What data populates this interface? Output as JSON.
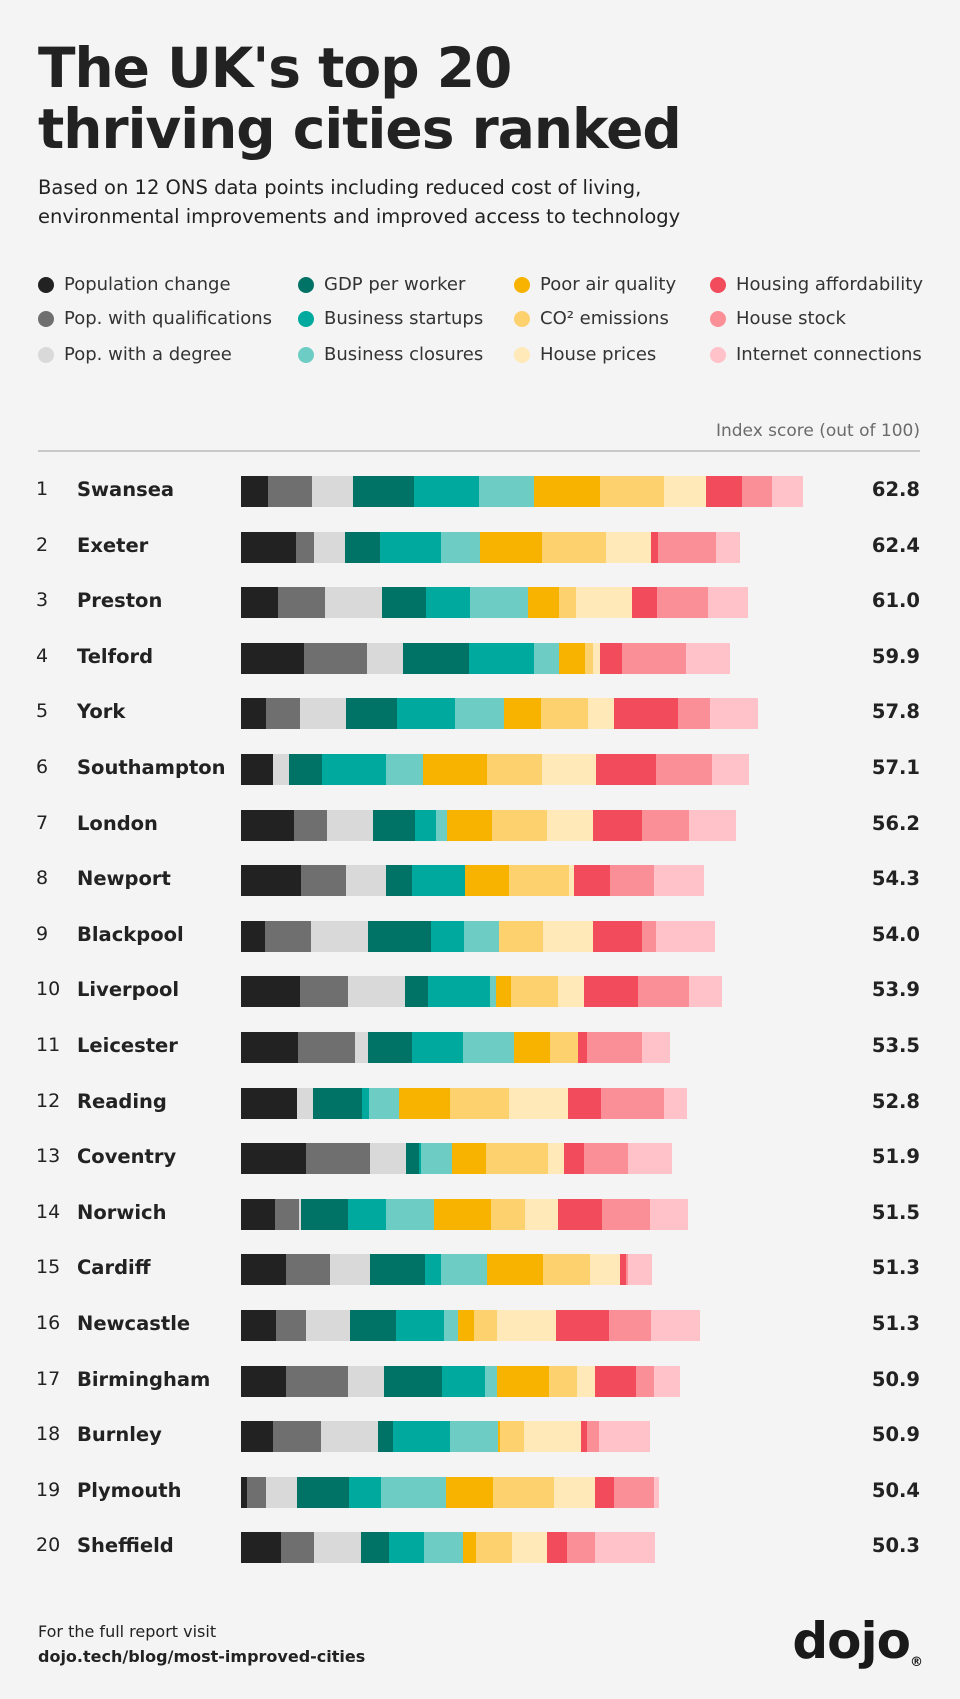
{
  "header": {
    "title_line1": "The UK's top 20",
    "title_line2": "thriving cities ranked",
    "subtitle_line1": "Based on 12 ONS data points including reduced cost of living,",
    "subtitle_line2": "environmental improvements and improved access to technology"
  },
  "index_label": "Index score (out of 100)",
  "footer": {
    "line1": "For the full report visit",
    "url": "dojo.tech/blog/most-improved-cities",
    "logo": "dojo",
    "logo_mark": "®"
  },
  "colors": {
    "background": "#f4f4f4",
    "text": "#1f1f1f",
    "muted": "#6b6b6b",
    "divider": "#c8c8c8"
  },
  "chart_data": {
    "type": "bar",
    "orientation": "horizontal",
    "stacked": true,
    "title": "The UK's top 20 thriving cities ranked",
    "subtitle": "Based on 12 ONS data points including reduced cost of living, environmental improvements and improved access to technology",
    "value_label": "Index score (out of 100)",
    "legend_position": "top",
    "series": [
      {
        "name": "Population change",
        "color": "#222222",
        "values": [
          2.6,
          5.4,
          3.6,
          6.2,
          2.4,
          3.1,
          5.2,
          5.9,
          2.3,
          5.8,
          5.6,
          5.5,
          6.4,
          3.3,
          4.4,
          3.4,
          4.4,
          3.1,
          0.6,
          3.9
        ]
      },
      {
        "name": "Pop. with qualifications",
        "color": "#6f6f6f",
        "values": [
          4.4,
          1.8,
          4.6,
          6.1,
          3.4,
          0,
          3.2,
          4.4,
          4.6,
          4.7,
          5.6,
          0,
          6.2,
          2.4,
          4.3,
          3.0,
          6.1,
          4.7,
          1.8,
          3.3
        ]
      },
      {
        "name": "Pop. with a degree",
        "color": "#d9d9d9",
        "values": [
          4.0,
          3.0,
          5.6,
          3.6,
          4.5,
          1.6,
          4.5,
          3.9,
          5.5,
          5.6,
          1.2,
          1.6,
          3.6,
          0.2,
          3.9,
          4.3,
          3.5,
          5.6,
          3.1,
          4.6
        ]
      },
      {
        "name": "GDP per worker",
        "color": "#007366",
        "values": [
          6.0,
          3.4,
          4.3,
          6.4,
          5.0,
          3.2,
          4.2,
          2.6,
          6.2,
          2.2,
          4.4,
          4.8,
          1.2,
          4.6,
          5.4,
          4.5,
          5.7,
          1.5,
          5.1,
          2.7
        ]
      },
      {
        "name": "Business startups",
        "color": "#00a99d",
        "values": [
          6.3,
          6.0,
          4.3,
          6.4,
          5.7,
          6.3,
          2.0,
          5.2,
          3.3,
          6.1,
          5.0,
          0.6,
          0.2,
          3.7,
          1.6,
          4.7,
          4.2,
          5.6,
          3.1,
          3.4
        ]
      },
      {
        "name": "Business closures",
        "color": "#6dcdc4",
        "values": [
          5.4,
          3.8,
          5.7,
          2.5,
          4.8,
          3.6,
          1.1,
          0,
          3.4,
          0.6,
          5.0,
          3.0,
          3.1,
          4.7,
          4.5,
          1.4,
          1.2,
          4.7,
          6.4,
          3.9
        ]
      },
      {
        "name": "Poor air quality",
        "color": "#f8b200",
        "values": [
          6.5,
          6.1,
          3.1,
          2.5,
          3.6,
          6.3,
          4.4,
          4.3,
          0,
          1.5,
          3.5,
          5.0,
          3.3,
          5.6,
          5.5,
          1.5,
          5.1,
          0.2,
          4.6,
          1.2
        ]
      },
      {
        "name": "CO² emissions",
        "color": "#fdd26e",
        "values": [
          6.3,
          6.3,
          1.6,
          0.8,
          4.6,
          5.4,
          5.4,
          5.9,
          4.3,
          4.6,
          2.7,
          5.8,
          6.1,
          3.3,
          4.6,
          2.3,
          2.7,
          2.3,
          6.0,
          3.6
        ]
      },
      {
        "name": "House prices",
        "color": "#ffe9b8",
        "values": [
          4.1,
          4.4,
          5.5,
          0.7,
          2.6,
          5.3,
          4.5,
          0.4,
          4.9,
          2.5,
          0,
          5.8,
          1.6,
          3.3,
          3.0,
          5.8,
          1.8,
          5.6,
          4.0,
          3.4
        ]
      },
      {
        "name": "Housing affordability",
        "color": "#f24b5b",
        "values": [
          3.5,
          0.7,
          2.5,
          2.1,
          6.2,
          5.9,
          4.8,
          3.6,
          4.8,
          5.3,
          0.9,
          3.2,
          1.9,
          4.3,
          0.5,
          5.2,
          4.0,
          0.6,
          1.9,
          2.0
        ]
      },
      {
        "name": "House stock",
        "color": "#fb8f97",
        "values": [
          3.0,
          5.7,
          5.0,
          6.3,
          3.2,
          5.5,
          4.6,
          4.3,
          1.4,
          5.0,
          5.4,
          6.2,
          4.3,
          4.7,
          0.2,
          4.1,
          1.8,
          1.2,
          3.9,
          2.7
        ]
      },
      {
        "name": "Internet connections",
        "color": "#ffc2c8",
        "values": [
          3.0,
          2.3,
          3.9,
          4.3,
          4.7,
          3.6,
          4.6,
          4.9,
          5.7,
          3.2,
          2.7,
          2.2,
          4.3,
          3.7,
          2.4,
          4.8,
          2.5,
          5.0,
          0.4,
          5.9
        ]
      }
    ],
    "categories": [
      "Swansea",
      "Exeter",
      "Preston",
      "Telford",
      "York",
      "Southampton",
      "London",
      "Newport",
      "Blackpool",
      "Liverpool",
      "Leicester",
      "Reading",
      "Coventry",
      "Norwich",
      "Cardiff",
      "Newcastle",
      "Birmingham",
      "Burnley",
      "Plymouth",
      "Sheffield"
    ],
    "ranks": [
      "1",
      "2",
      "3",
      "4",
      "5",
      "6",
      "7",
      "8",
      "9",
      "10",
      "11",
      "12",
      "13",
      "14",
      "15",
      "16",
      "17",
      "18",
      "19",
      "20"
    ],
    "scores": [
      "62.8",
      "62.4",
      "61.0",
      "59.9",
      "57.8",
      "57.1",
      "56.2",
      "54.3",
      "54.0",
      "53.9",
      "53.5",
      "52.8",
      "51.9",
      "51.5",
      "51.3",
      "51.3",
      "50.9",
      "50.9",
      "50.4",
      "50.3"
    ],
    "xlim": [
      0,
      62
    ]
  }
}
